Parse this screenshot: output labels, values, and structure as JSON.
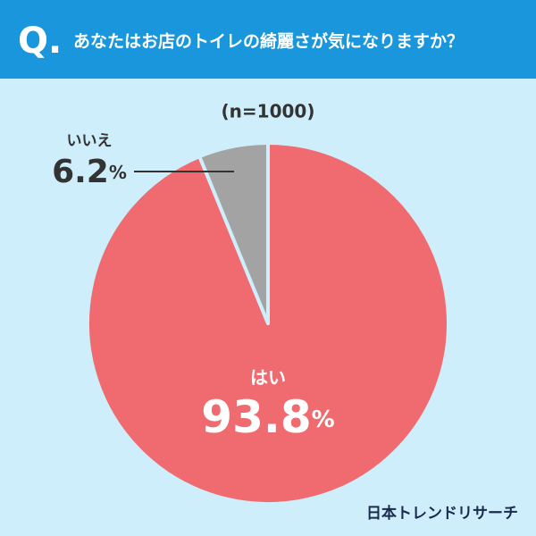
{
  "badge": "Q.",
  "source": "日本トレンドリサーチ",
  "chart_data": {
    "type": "pie",
    "title": "あなたはお店のトイレの綺麗さが気になりますか？",
    "subtitle": "(n=1000)",
    "categories": [
      "はい",
      "いいえ"
    ],
    "values": [
      93.8,
      6.2
    ],
    "value_labels": [
      "93.8%",
      "6.2%"
    ],
    "colors": [
      "#f06b70",
      "#a3a3a3"
    ]
  }
}
